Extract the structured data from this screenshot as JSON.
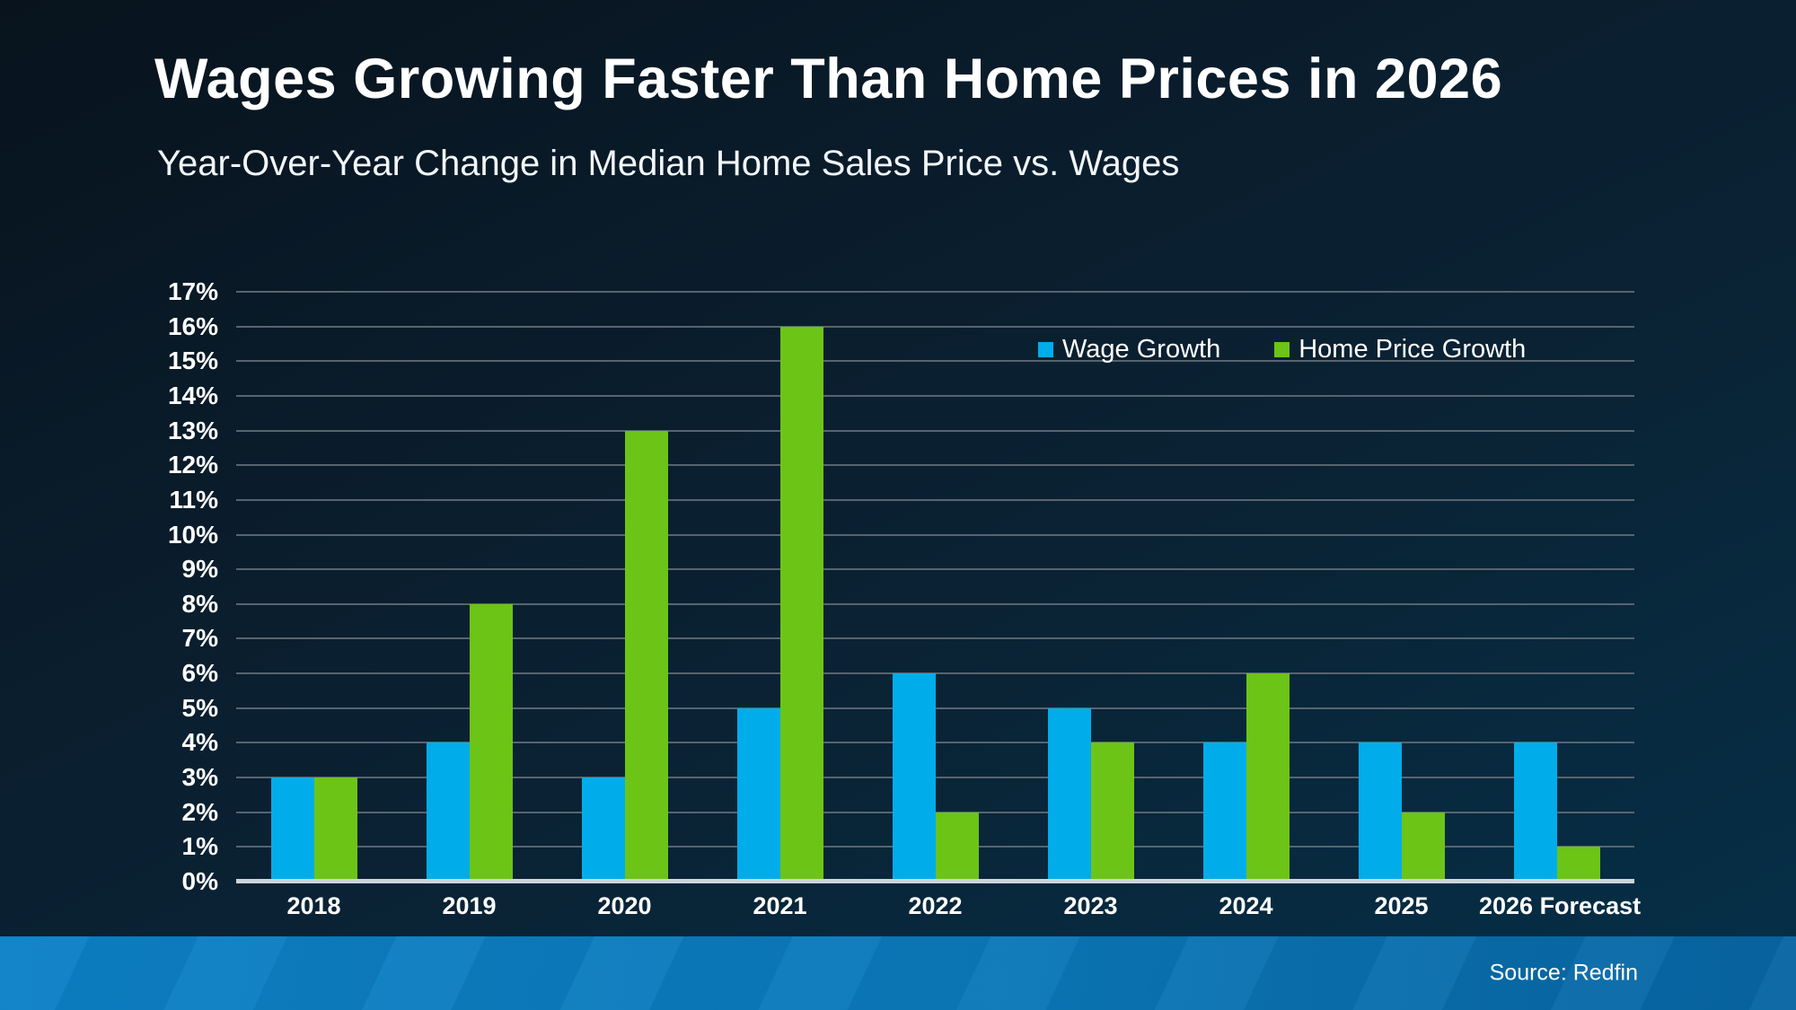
{
  "header": {
    "title": "Wages Growing Faster Than Home Prices in 2026",
    "subtitle": "Year-Over-Year Change in Median Home Sales Price vs. Wages"
  },
  "footer": {
    "source": "Source: Redfin"
  },
  "colors": {
    "background_top": "#08131d",
    "background_bottom": "#053049",
    "gridline": "#58646f",
    "axis_baseline": "#ccd4db",
    "footer_band": "#0c81c6",
    "text": "#ffffff"
  },
  "chart_data": {
    "type": "bar",
    "categories": [
      "2018",
      "2019",
      "2020",
      "2021",
      "2022",
      "2023",
      "2024",
      "2025",
      "2026 Forecast"
    ],
    "series": [
      {
        "name": "Wage Growth",
        "color": "#00ADEA",
        "values": [
          3,
          4,
          3,
          5,
          6,
          5,
          4,
          4,
          4
        ]
      },
      {
        "name": "Home Price Growth",
        "color": "#6CC417",
        "values": [
          3,
          8,
          13,
          16,
          2,
          4,
          6,
          2,
          1
        ]
      }
    ],
    "title": "Wages Growing Faster Than Home Prices in 2026",
    "subtitle": "Year-Over-Year Change in Median Home Sales Price vs. Wages",
    "xlabel": "",
    "ylabel": "",
    "ylim": [
      0,
      17
    ],
    "ytick_step": 1,
    "yticks": [
      "0%",
      "1%",
      "2%",
      "3%",
      "4%",
      "5%",
      "6%",
      "7%",
      "8%",
      "9%",
      "10%",
      "11%",
      "12%",
      "13%",
      "14%",
      "15%",
      "16%",
      "17%"
    ],
    "grid": true,
    "legend_position": "top-right"
  }
}
